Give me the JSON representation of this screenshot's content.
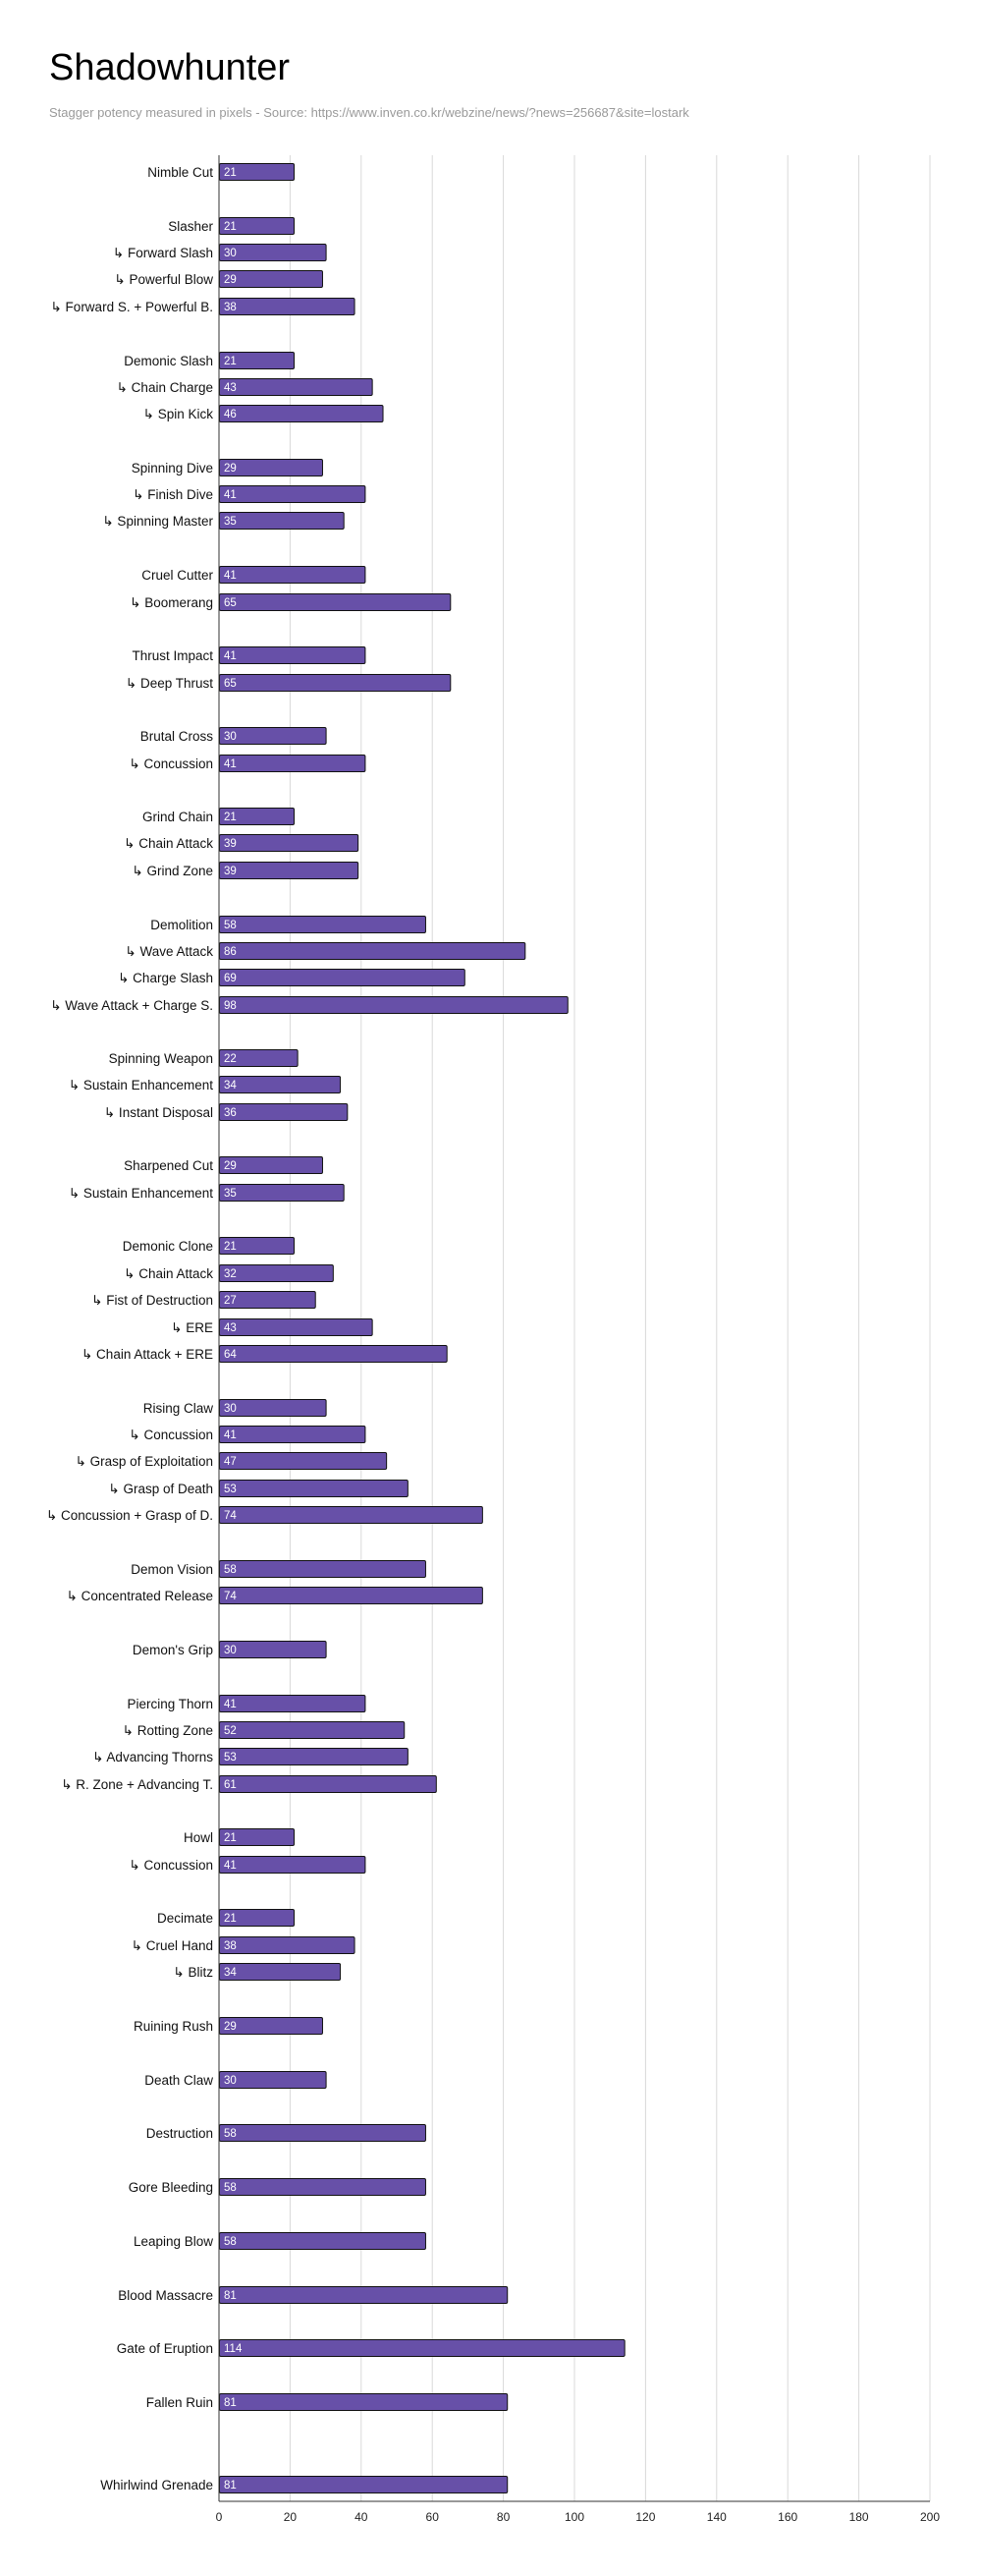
{
  "chart_data": {
    "type": "bar",
    "orientation": "horizontal",
    "title": "Shadowhunter",
    "subtitle": "Stagger potency measured in pixels - Source: https://www.inven.co.kr/webzine/news/?news=256687&site=lostark",
    "xlabel": "",
    "ylabel": "",
    "xlim": [
      0,
      200
    ],
    "xticks": [
      0,
      20,
      40,
      60,
      80,
      100,
      120,
      140,
      160,
      180,
      200
    ],
    "grid": true,
    "bar_color": "#6750a8",
    "bar_edge_color": "#111111",
    "categories": [
      "Nimble Cut",
      "Slasher",
      "↳ Forward Slash",
      "↳ Powerful Blow",
      "↳ Forward S. + Powerful B.",
      "Demonic Slash",
      "↳ Chain Charge",
      "↳ Spin Kick",
      "Spinning Dive",
      "↳ Finish Dive",
      "↳ Spinning Master",
      "Cruel Cutter",
      "↳ Boomerang",
      "Thrust Impact",
      "↳ Deep Thrust",
      "Brutal Cross",
      "↳ Concussion",
      "Grind Chain",
      "↳ Chain Attack",
      "↳ Grind Zone",
      "Demolition",
      "↳ Wave Attack",
      "↳ Charge Slash",
      "↳ Wave Attack + Charge S.",
      "Spinning Weapon",
      "↳ Sustain Enhancement",
      "↳ Instant Disposal",
      "Sharpened Cut",
      "↳ Sustain Enhancement",
      "Demonic Clone",
      "↳ Chain Attack",
      "↳ Fist of Destruction",
      "↳ ERE",
      "↳ Chain Attack + ERE",
      "Rising Claw",
      "↳ Concussion",
      "↳ Grasp of Exploitation",
      "↳ Grasp of Death",
      "↳ Concussion + Grasp of D.",
      "Demon Vision",
      "↳ Concentrated Release",
      "Demon's Grip",
      "Piercing Thorn",
      "↳ Rotting Zone",
      "↳ Advancing Thorns",
      "↳ R. Zone + Advancing T.",
      "Howl",
      "↳ Concussion",
      "Decimate",
      "↳ Cruel Hand",
      "↳ Blitz",
      "Ruining Rush",
      "Death Claw",
      "Destruction",
      "Gore Bleeding",
      "Leaping Blow",
      "Blood Massacre",
      "Gate of Eruption",
      "Fallen Ruin",
      "Whirlwind Grenade"
    ],
    "values": [
      21,
      21,
      30,
      29,
      38,
      21,
      43,
      46,
      29,
      41,
      35,
      41,
      65,
      41,
      65,
      30,
      41,
      21,
      39,
      39,
      58,
      86,
      69,
      98,
      22,
      34,
      36,
      29,
      35,
      21,
      32,
      27,
      43,
      64,
      30,
      41,
      47,
      53,
      74,
      58,
      74,
      30,
      41,
      52,
      53,
      61,
      21,
      41,
      21,
      38,
      34,
      29,
      30,
      58,
      58,
      58,
      81,
      114,
      81,
      81
    ]
  }
}
